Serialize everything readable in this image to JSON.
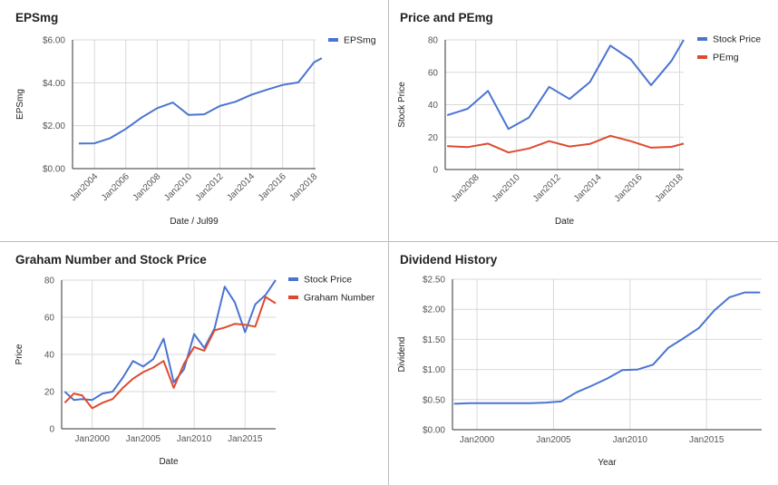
{
  "colors": {
    "blue": "#4a74d2",
    "red": "#dd4b2f",
    "grid": "#d9d9d9",
    "axis": "#333333"
  },
  "chart_data": [
    {
      "id": "eps",
      "type": "line",
      "title": "EPSmg",
      "xlabel": "Date / Jul99",
      "ylabel": "EPSmg",
      "x_ticks": [
        "Jan2004",
        "Jan2006",
        "Jan2008",
        "Jan2010",
        "Jan2012",
        "Jan2014",
        "Jan2016",
        "Jan2018"
      ],
      "xlim": [
        2002.6,
        2018.1
      ],
      "ylim": [
        0,
        6
      ],
      "y_ticks": [
        "$0.00",
        "$2.00",
        "$4.00",
        "$6.00"
      ],
      "legend": "right",
      "series": [
        {
          "name": "EPSmg",
          "x": [
            2003,
            2004,
            2005,
            2006,
            2007,
            2008,
            2009,
            2010,
            2011,
            2012,
            2013,
            2014,
            2015,
            2016,
            2017,
            2018,
            2018.5
          ],
          "y": [
            1.17,
            1.18,
            1.42,
            1.85,
            2.38,
            2.82,
            3.08,
            2.5,
            2.53,
            2.92,
            3.12,
            3.44,
            3.68,
            3.9,
            4.02,
            4.95,
            5.15
          ]
        }
      ]
    },
    {
      "id": "pe",
      "type": "line",
      "title": "Price and PEmg",
      "xlabel": "Date",
      "ylabel": "Stock Price",
      "x_ticks": [
        "Jan2008",
        "Jan2010",
        "Jan2012",
        "Jan2014",
        "Jan2016",
        "Jan2018"
      ],
      "xlim": [
        2006.5,
        2018.2
      ],
      "ylim": [
        0,
        80
      ],
      "y_ticks": [
        "0",
        "20",
        "40",
        "60",
        "80"
      ],
      "legend": "right",
      "series": [
        {
          "name": "Stock Price",
          "x": [
            2006.6,
            2007.6,
            2008.6,
            2009.6,
            2010.6,
            2011.6,
            2012.6,
            2013.6,
            2014.6,
            2015.6,
            2016.6,
            2017.6,
            2018.2
          ],
          "y": [
            33.5,
            37.5,
            48.5,
            25,
            32,
            51,
            43.5,
            54,
            76.5,
            68,
            52,
            67,
            80
          ]
        },
        {
          "name": "PEmg",
          "x": [
            2006.6,
            2007.6,
            2008.6,
            2009.6,
            2010.6,
            2011.6,
            2012.6,
            2013.6,
            2014.6,
            2015.6,
            2016.6,
            2017.6,
            2018.2
          ],
          "y": [
            14.5,
            13.8,
            16,
            10.5,
            13,
            17.5,
            14.2,
            15.8,
            20.8,
            17.5,
            13.5,
            14,
            16
          ]
        }
      ]
    },
    {
      "id": "graham",
      "type": "line",
      "title": "Graham Number and Stock Price",
      "xlabel": "Date",
      "ylabel": "Price",
      "x_ticks": [
        "Jan2000",
        "Jan2005",
        "Jan2010",
        "Jan2015"
      ],
      "xlim": [
        1997,
        2018
      ],
      "ylim": [
        0,
        80
      ],
      "y_ticks": [
        "0",
        "20",
        "40",
        "60",
        "80"
      ],
      "legend": "right",
      "series": [
        {
          "name": "Stock Price",
          "x": [
            1997.3,
            1998.2,
            1999,
            2000,
            2001,
            2002,
            2003,
            2004,
            2005,
            2006,
            2007,
            2008,
            2009,
            2010,
            2011,
            2012,
            2013,
            2014,
            2015,
            2016,
            2017,
            2018
          ],
          "y": [
            20,
            15.5,
            16,
            15.5,
            19,
            20,
            27.5,
            36.5,
            33.5,
            37.5,
            48.5,
            25,
            32,
            51,
            43.5,
            54,
            76.5,
            68,
            52,
            67,
            72,
            80
          ]
        },
        {
          "name": "Graham Number",
          "x": [
            1997.3,
            1998.2,
            1999,
            2000,
            2001,
            2002,
            2003,
            2004,
            2005,
            2006,
            2007,
            2008,
            2009,
            2010,
            2011,
            2012,
            2013,
            2014,
            2015,
            2016,
            2017,
            2018
          ],
          "y": [
            14,
            19,
            18,
            11,
            14,
            16,
            22,
            27,
            30.5,
            33,
            36.5,
            22,
            35,
            44,
            42,
            53,
            54.5,
            56.5,
            56,
            55,
            71,
            67.5
          ]
        }
      ]
    },
    {
      "id": "dividend",
      "type": "line",
      "title": "Dividend History",
      "xlabel": "Year",
      "ylabel": "Dividend",
      "x_ticks": [
        "Jan2000",
        "Jan2005",
        "Jan2010",
        "Jan2015"
      ],
      "xlim": [
        1998.4,
        2018.6
      ],
      "ylim": [
        0,
        2.5
      ],
      "y_ticks": [
        "$0.00",
        "$0.50",
        "$1.00",
        "$1.50",
        "$2.00",
        "$2.50"
      ],
      "series": [
        {
          "name": "Dividend",
          "x": [
            1998.5,
            1999.5,
            2000.5,
            2001.5,
            2002.5,
            2003.5,
            2004.5,
            2005.5,
            2006.5,
            2007.5,
            2008.5,
            2009.5,
            2010.5,
            2011.5,
            2012.5,
            2013.5,
            2014.5,
            2015.5,
            2016.5,
            2017.5,
            2018.5
          ],
          "y": [
            0.43,
            0.44,
            0.44,
            0.44,
            0.44,
            0.44,
            0.45,
            0.47,
            0.62,
            0.73,
            0.85,
            0.99,
            1.0,
            1.08,
            1.36,
            1.52,
            1.69,
            1.98,
            2.2,
            2.28,
            2.28
          ]
        }
      ]
    }
  ]
}
